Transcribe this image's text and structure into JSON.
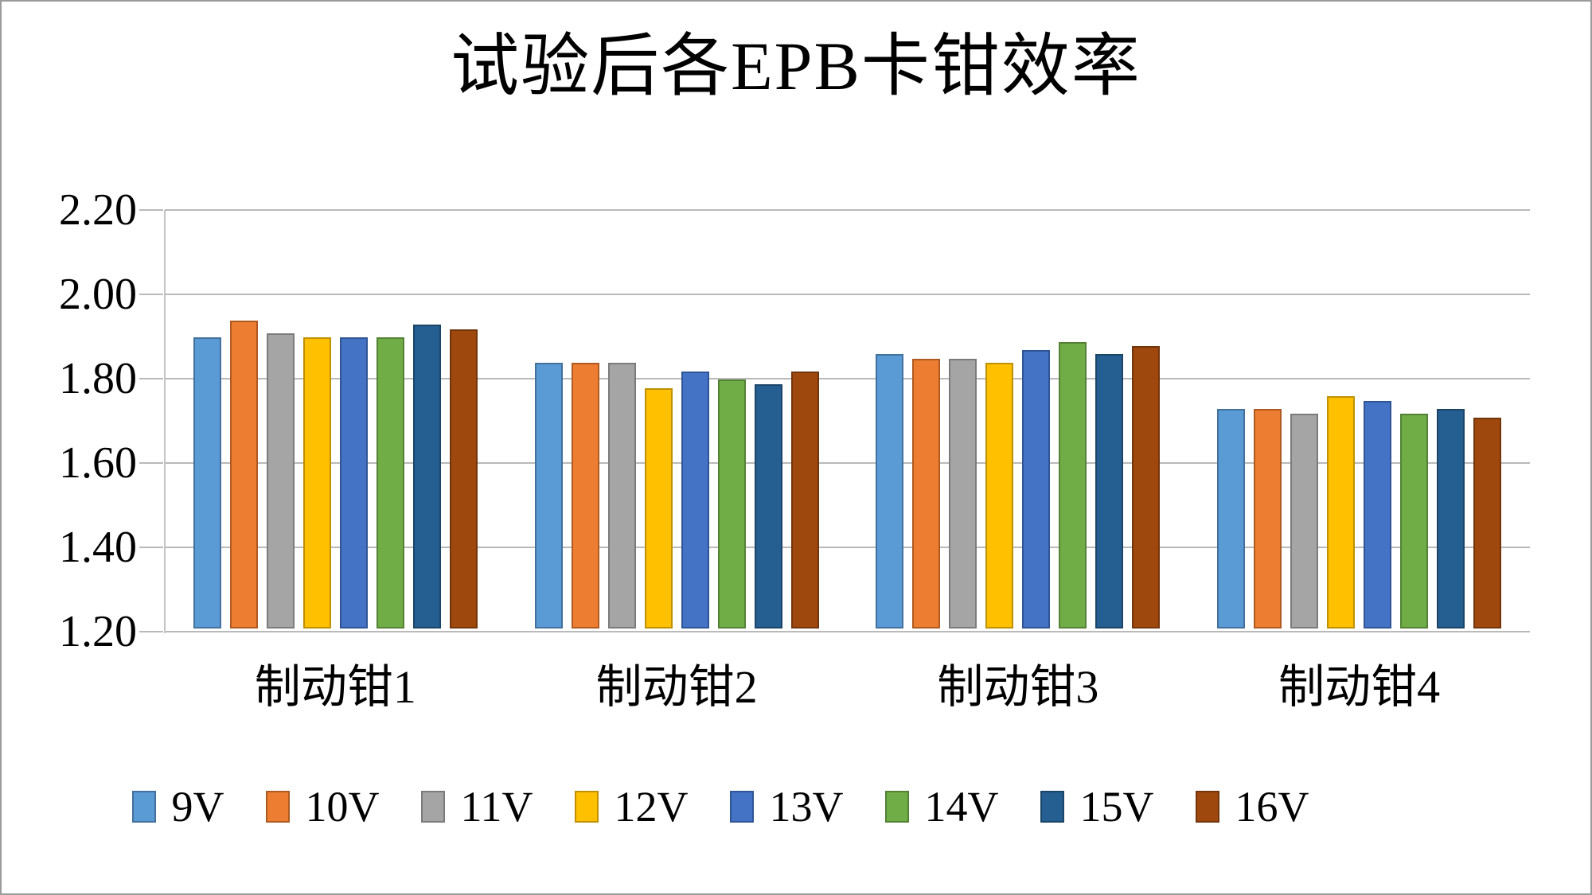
{
  "frame": {
    "border_color": "#9b9b9b",
    "background": "#ffffff"
  },
  "chart_data": {
    "type": "bar",
    "title": "试验后各EPB卡钳效率",
    "categories": [
      "制动钳1",
      "制动钳2",
      "制动钳3",
      "制动钳4"
    ],
    "series": [
      {
        "name": "9V",
        "color": "#5B9BD5",
        "border_color": "#41719C",
        "values": [
          1.89,
          1.83,
          1.85,
          1.72
        ]
      },
      {
        "name": "10V",
        "color": "#ED7D31",
        "border_color": "#AE5A21",
        "values": [
          1.93,
          1.83,
          1.84,
          1.72
        ]
      },
      {
        "name": "11V",
        "color": "#A5A5A5",
        "border_color": "#7B7B7B",
        "values": [
          1.9,
          1.83,
          1.84,
          1.71
        ]
      },
      {
        "name": "12V",
        "color": "#FFC000",
        "border_color": "#BF9000",
        "values": [
          1.89,
          1.77,
          1.83,
          1.75
        ]
      },
      {
        "name": "13V",
        "color": "#4472C4",
        "border_color": "#2F5597",
        "values": [
          1.89,
          1.81,
          1.86,
          1.74
        ]
      },
      {
        "name": "14V",
        "color": "#70AD47",
        "border_color": "#548235",
        "values": [
          1.89,
          1.79,
          1.88,
          1.71
        ]
      },
      {
        "name": "15V",
        "color": "#255E91",
        "border_color": "#1B4567",
        "values": [
          1.92,
          1.78,
          1.85,
          1.72
        ]
      },
      {
        "name": "16V",
        "color": "#9E480E",
        "border_color": "#73350B",
        "values": [
          1.91,
          1.81,
          1.87,
          1.7
        ]
      }
    ],
    "ylim": [
      1.2,
      2.2
    ],
    "ytick_labels": [
      "2.20",
      "2.00",
      "1.80",
      "1.60",
      "1.40",
      "1.20"
    ],
    "grid": true,
    "gridline_color": "#b9b9b9",
    "legend_position": "bottom"
  }
}
